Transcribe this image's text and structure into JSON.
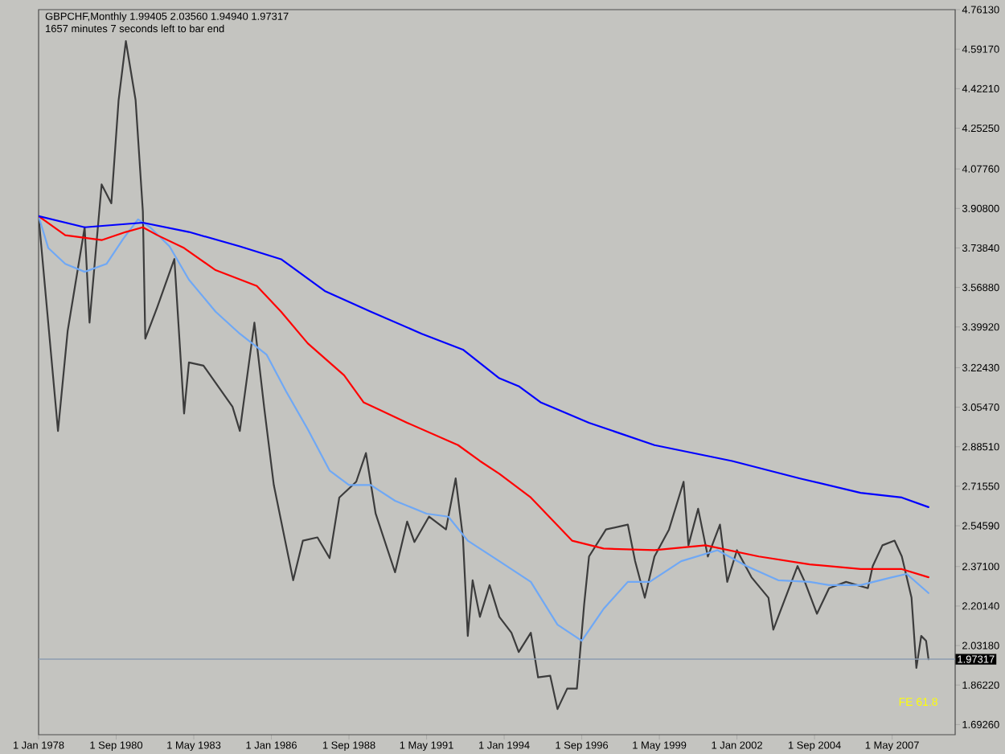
{
  "chart_data": {
    "type": "line",
    "title": "GBPCHF,Monthly 1.99405 2.03560 1.94940 1.97317",
    "subtitle": "1657 minutes 7 seconds left to bar end",
    "xlim": [
      "1978-01",
      "2009-07"
    ],
    "xticks": [
      {
        "value": "1978-01",
        "label": "1 Jan 1978"
      },
      {
        "value": "1980-09",
        "label": "1 Sep 1980"
      },
      {
        "value": "1983-05",
        "label": "1 May 1983"
      },
      {
        "value": "1986-01",
        "label": "1 Jan 1986"
      },
      {
        "value": "1988-09",
        "label": "1 Sep 1988"
      },
      {
        "value": "1991-05",
        "label": "1 May 1991"
      },
      {
        "value": "1994-01",
        "label": "1 Jan 1994"
      },
      {
        "value": "1996-09",
        "label": "1 Sep 1996"
      },
      {
        "value": "1999-05",
        "label": "1 May 1999"
      },
      {
        "value": "2002-01",
        "label": "1 Jan 2002"
      },
      {
        "value": "2004-09",
        "label": "1 Sep 2004"
      },
      {
        "value": "2007-05",
        "label": "1 May 2007"
      }
    ],
    "ylim": [
      1.649,
      4.7613
    ],
    "yticks": [
      {
        "value": 1.6926,
        "label": "1.69260"
      },
      {
        "value": 1.8622,
        "label": "1.86220"
      },
      {
        "value": 2.0318,
        "label": "2.03180"
      },
      {
        "value": 2.2014,
        "label": "2.20140"
      },
      {
        "value": 2.371,
        "label": "2.37100"
      },
      {
        "value": 2.5459,
        "label": "2.54590"
      },
      {
        "value": 2.7155,
        "label": "2.71550"
      },
      {
        "value": 2.8851,
        "label": "2.88510"
      },
      {
        "value": 3.0547,
        "label": "3.05470"
      },
      {
        "value": 3.2243,
        "label": "3.22430"
      },
      {
        "value": 3.3992,
        "label": "3.39920"
      },
      {
        "value": 3.5688,
        "label": "3.56880"
      },
      {
        "value": 3.7384,
        "label": "3.73840"
      },
      {
        "value": 3.908,
        "label": "3.90800"
      },
      {
        "value": 4.0776,
        "label": "4.07760"
      },
      {
        "value": 4.2525,
        "label": "4.25250"
      },
      {
        "value": 4.4221,
        "label": "4.42210"
      },
      {
        "value": 4.5917,
        "label": "4.59170"
      },
      {
        "value": 4.7613,
        "label": "4.76130"
      }
    ],
    "series": [
      {
        "color": "#3c3c3c",
        "x": [
          "1978-01",
          "1978-09",
          "1979-01",
          "1979-08",
          "1979-10",
          "1980-03",
          "1980-07",
          "1980-10",
          "1981-01",
          "1981-05",
          "1981-08",
          "1981-09",
          "1982-02",
          "1982-09",
          "1983-01",
          "1983-03",
          "1983-09",
          "1984-09",
          "1984-12",
          "1985-06",
          "1985-10",
          "1986-02",
          "1986-10",
          "1987-02",
          "1987-08",
          "1988-01",
          "1988-05",
          "1988-12",
          "1989-04",
          "1989-08",
          "1990-04",
          "1990-09",
          "1990-12",
          "1991-06",
          "1992-01",
          "1992-05",
          "1992-08",
          "1992-10",
          "1992-12",
          "1993-03",
          "1993-07",
          "1993-11",
          "1994-04",
          "1994-07",
          "1994-12",
          "1995-03",
          "1995-08",
          "1995-11",
          "1996-03",
          "1996-07",
          "1996-08",
          "1996-10",
          "1996-12",
          "1997-07",
          "1998-04",
          "1998-07",
          "1998-11",
          "1999-03",
          "1999-09",
          "2000-03",
          "2000-05",
          "2000-09",
          "2001-01",
          "2001-06",
          "2001-09",
          "2002-01",
          "2002-07",
          "2003-02",
          "2003-04",
          "2003-09",
          "2004-02",
          "2004-05",
          "2004-10",
          "2005-03",
          "2005-10",
          "2006-07",
          "2006-09",
          "2007-01",
          "2007-06",
          "2007-09",
          "2008-01",
          "2008-03",
          "2008-05",
          "2008-07",
          "2008-08"
        ],
        "values": [
          3.875,
          2.953,
          3.383,
          3.827,
          3.418,
          4.011,
          3.93,
          4.373,
          4.626,
          4.373,
          3.895,
          3.349,
          3.486,
          3.691,
          3.028,
          3.247,
          3.233,
          3.056,
          2.953,
          3.418,
          3.056,
          2.721,
          2.312,
          2.482,
          2.496,
          2.407,
          2.667,
          2.735,
          2.858,
          2.598,
          2.346,
          2.564,
          2.476,
          2.585,
          2.53,
          2.749,
          2.496,
          2.073,
          2.312,
          2.155,
          2.291,
          2.155,
          2.087,
          2.004,
          2.087,
          1.895,
          1.902,
          1.759,
          1.847,
          1.847,
          1.964,
          2.209,
          2.414,
          2.53,
          2.551,
          2.394,
          2.237,
          2.414,
          2.53,
          2.735,
          2.462,
          2.619,
          2.414,
          2.551,
          2.305,
          2.441,
          2.325,
          2.237,
          2.1,
          2.237,
          2.373,
          2.305,
          2.168,
          2.278,
          2.305,
          2.278,
          2.373,
          2.462,
          2.482,
          2.414,
          2.237,
          1.936,
          2.073,
          2.052,
          1.973
        ]
      },
      {
        "color": "#6fa8f5",
        "x": [
          "1978-01",
          "1978-05",
          "1978-12",
          "1979-08",
          "1980-05",
          "1980-12",
          "1981-06",
          "1981-11",
          "1982-07",
          "1983-03",
          "1984-02",
          "1984-12",
          "1985-11",
          "1986-07",
          "1987-04",
          "1988-01",
          "1988-09",
          "1989-06",
          "1990-04",
          "1991-05",
          "1992-02",
          "1992-10",
          "1993-11",
          "1994-12",
          "1995-11",
          "1996-09",
          "1997-06",
          "1998-04",
          "1999-01",
          "2000-02",
          "2001-05",
          "2002-05",
          "2003-06",
          "2004-07",
          "2005-03",
          "2006-04",
          "2007-05",
          "2007-11",
          "2008-08"
        ],
        "values": [
          3.875,
          3.738,
          3.67,
          3.636,
          3.67,
          3.779,
          3.861,
          3.827,
          3.745,
          3.602,
          3.465,
          3.37,
          3.281,
          3.124,
          2.96,
          2.783,
          2.721,
          2.721,
          2.653,
          2.598,
          2.585,
          2.482,
          2.394,
          2.305,
          2.121,
          2.052,
          2.189,
          2.305,
          2.305,
          2.394,
          2.441,
          2.373,
          2.312,
          2.305,
          2.291,
          2.291,
          2.325,
          2.339,
          2.257
        ]
      },
      {
        "color": "#ff0000",
        "x": [
          "1978-01",
          "1978-12",
          "1980-03",
          "1981-01",
          "1981-08",
          "1982-02",
          "1983-01",
          "1984-02",
          "1985-07",
          "1986-05",
          "1987-04",
          "1988-07",
          "1989-03",
          "1990-09",
          "1992-06",
          "1993-03",
          "1993-11",
          "1994-12",
          "1996-05",
          "1997-06",
          "1999-03",
          "2000-12",
          "2002-10",
          "2004-07",
          "2006-04",
          "2007-09",
          "2008-08"
        ],
        "values": [
          3.875,
          3.793,
          3.772,
          3.807,
          3.827,
          3.793,
          3.738,
          3.643,
          3.575,
          3.465,
          3.329,
          3.192,
          3.076,
          2.988,
          2.892,
          2.824,
          2.769,
          2.667,
          2.482,
          2.448,
          2.441,
          2.462,
          2.414,
          2.38,
          2.36,
          2.36,
          2.325
        ]
      },
      {
        "color": "#0000ff",
        "x": [
          "1978-01",
          "1979-08",
          "1981-08",
          "1983-03",
          "1984-12",
          "1986-05",
          "1987-11",
          "1989-06",
          "1991-03",
          "1992-08",
          "1993-11",
          "1994-07",
          "1995-04",
          "1996-12",
          "1999-03",
          "2001-11",
          "2004-03",
          "2006-04",
          "2007-09",
          "2008-08"
        ],
        "values": [
          3.875,
          3.827,
          3.847,
          3.807,
          3.745,
          3.69,
          3.554,
          3.465,
          3.37,
          3.302,
          3.179,
          3.145,
          3.076,
          2.988,
          2.892,
          2.824,
          2.749,
          2.687,
          2.667,
          2.626
        ]
      }
    ],
    "ref_lines": [
      {
        "axis": "y",
        "value": 1.97317,
        "label": "1.97317",
        "color": "#8c9cb0"
      }
    ],
    "annotations": [
      "FE 61.8"
    ]
  }
}
